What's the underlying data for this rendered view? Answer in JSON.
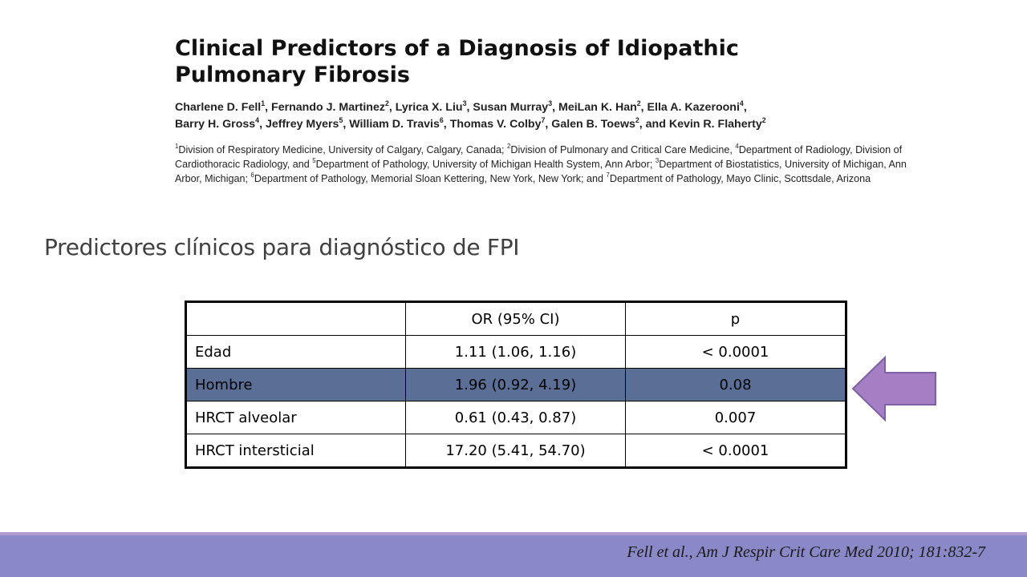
{
  "paper": {
    "title_line1": "Clinical Predictors of a Diagnosis of Idiopathic",
    "title_line2": "Pulmonary Fibrosis",
    "authors": [
      {
        "name": "Charlene D. Fell",
        "sup": "1"
      },
      {
        "name": "Fernando J. Martinez",
        "sup": "2"
      },
      {
        "name": "Lyrica X. Liu",
        "sup": "3"
      },
      {
        "name": "Susan Murray",
        "sup": "3"
      },
      {
        "name": "MeiLan K. Han",
        "sup": "2"
      },
      {
        "name": "Ella A. Kazerooni",
        "sup": "4"
      },
      {
        "name": "Barry H. Gross",
        "sup": "4"
      },
      {
        "name": "Jeffrey Myers",
        "sup": "5"
      },
      {
        "name": "William D. Travis",
        "sup": "6"
      },
      {
        "name": "Thomas V. Colby",
        "sup": "7"
      },
      {
        "name": "Galen B. Toews",
        "sup": "2"
      },
      {
        "name": "and Kevin R. Flaherty",
        "sup": "2"
      }
    ],
    "affiliations": [
      {
        "sup": "1",
        "text": "Division of Respiratory Medicine, University of Calgary, Calgary, Canada; "
      },
      {
        "sup": "2",
        "text": "Division of Pulmonary and Critical Care Medicine, "
      },
      {
        "sup": "4",
        "text": "Department of Radiology, Division of Cardiothoracic Radiology, and "
      },
      {
        "sup": "5",
        "text": "Department of Pathology, University of Michigan Health System, Ann Arbor; "
      },
      {
        "sup": "3",
        "text": "Department of Biostatistics, University of Michigan, Ann Arbor, Michigan; "
      },
      {
        "sup": "6",
        "text": "Department of Pathology, Memorial Sloan Kettering, New York, New York; and "
      },
      {
        "sup": "7",
        "text": "Department of Pathology, Mayo Clinic, Scottsdale, Arizona"
      }
    ]
  },
  "slide": {
    "subtitle": "Predictores clínicos para diagnóstico de FPI"
  },
  "table": {
    "headers": [
      "",
      "OR (95% CI)",
      "p"
    ],
    "rows": [
      {
        "label": "Edad",
        "or": "1.11 (1.06, 1.16)",
        "p": "< 0.0001",
        "highlight": false
      },
      {
        "label": "Hombre",
        "or": "1.96 (0.92, 4.19)",
        "p": "0.08",
        "highlight": true
      },
      {
        "label": "HRCT alveolar",
        "or": "0.61 (0.43, 0.87)",
        "p": "0.007",
        "highlight": false
      },
      {
        "label": "HRCT intersticial",
        "or": "17.20 (5.41, 54.70)",
        "p": "< 0.0001",
        "highlight": false
      }
    ],
    "highlight_color": "#5b6f96"
  },
  "arrow": {
    "icon": "left-arrow-icon",
    "fill": "#a57fc4",
    "stroke": "#7e61a4"
  },
  "footer": {
    "citation": "Fell et al., Am J Respir Crit Care Med 2010; 181:832-7",
    "bar_color": "#8b88c7"
  }
}
